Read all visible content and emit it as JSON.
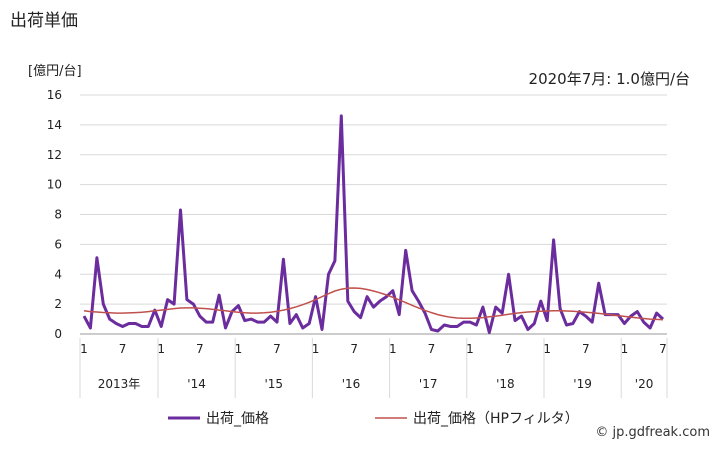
{
  "title": "出荷単価",
  "unit_label": "[億円/台]",
  "latest_note": "2020年7月: 1.0億円/台",
  "credit": "© jp.gdfreak.com",
  "colors": {
    "series": "#6b2d9e",
    "trend": "#c0504d",
    "grid": "#d9d9d9",
    "axis": "#999999"
  },
  "chart_data": {
    "type": "line",
    "title": "出荷単価",
    "ylabel": "[億円/台]",
    "ylim": [
      0,
      16
    ],
    "yticks": [
      "0",
      "2",
      "4",
      "6",
      "8",
      "10",
      "12",
      "14",
      "16"
    ],
    "month_labels": [
      "1",
      "7",
      "1",
      "7",
      "1",
      "7",
      "1",
      "7",
      "1",
      "7",
      "1",
      "7",
      "1",
      "7",
      "1",
      "7"
    ],
    "year_labels": [
      "2013年",
      "'14",
      "'15",
      "'16",
      "'17",
      "'18",
      "'19",
      "'20"
    ],
    "series": [
      {
        "name": "出荷_価格",
        "values": [
          1.2,
          0.4,
          5.1,
          2.0,
          1.0,
          0.7,
          0.5,
          0.7,
          0.7,
          0.5,
          0.5,
          1.6,
          0.5,
          2.3,
          2.0,
          8.3,
          2.3,
          2.0,
          1.2,
          0.8,
          0.8,
          2.6,
          0.4,
          1.5,
          1.9,
          0.9,
          1.0,
          0.8,
          0.8,
          1.2,
          0.8,
          5.0,
          0.7,
          1.3,
          0.4,
          0.7,
          2.5,
          0.3,
          4.0,
          4.9,
          14.6,
          2.2,
          1.5,
          1.1,
          2.5,
          1.8,
          2.2,
          2.5,
          2.9,
          1.3,
          5.6,
          2.9,
          2.2,
          1.4,
          0.3,
          0.2,
          0.6,
          0.5,
          0.5,
          0.8,
          0.8,
          0.6,
          1.8,
          0.1,
          1.8,
          1.4,
          4.0,
          0.9,
          1.2,
          0.3,
          0.7,
          2.2,
          0.9,
          6.3,
          1.7,
          0.6,
          0.7,
          1.5,
          1.2,
          0.8,
          3.4,
          1.3,
          1.3,
          1.3,
          0.7,
          1.2,
          1.5,
          0.8,
          0.4,
          1.4,
          1.0
        ]
      },
      {
        "name": "出荷_価格（HPフィルタ）",
        "values": [
          1.55,
          1.5,
          1.47,
          1.44,
          1.42,
          1.4,
          1.4,
          1.41,
          1.43,
          1.46,
          1.5,
          1.55,
          1.6,
          1.65,
          1.7,
          1.74,
          1.75,
          1.75,
          1.73,
          1.7,
          1.65,
          1.6,
          1.55,
          1.5,
          1.45,
          1.42,
          1.4,
          1.4,
          1.42,
          1.46,
          1.52,
          1.6,
          1.7,
          1.82,
          1.96,
          2.12,
          2.3,
          2.5,
          2.7,
          2.88,
          3.0,
          3.07,
          3.08,
          3.05,
          2.98,
          2.88,
          2.76,
          2.62,
          2.46,
          2.28,
          2.1,
          1.92,
          1.75,
          1.58,
          1.43,
          1.3,
          1.2,
          1.12,
          1.07,
          1.05,
          1.05,
          1.07,
          1.1,
          1.15,
          1.2,
          1.26,
          1.32,
          1.38,
          1.43,
          1.47,
          1.5,
          1.52,
          1.54,
          1.55,
          1.55,
          1.54,
          1.52,
          1.49,
          1.46,
          1.42,
          1.38,
          1.33,
          1.28,
          1.23,
          1.18,
          1.13,
          1.08,
          1.04,
          1.0,
          0.98,
          0.96
        ]
      }
    ]
  }
}
